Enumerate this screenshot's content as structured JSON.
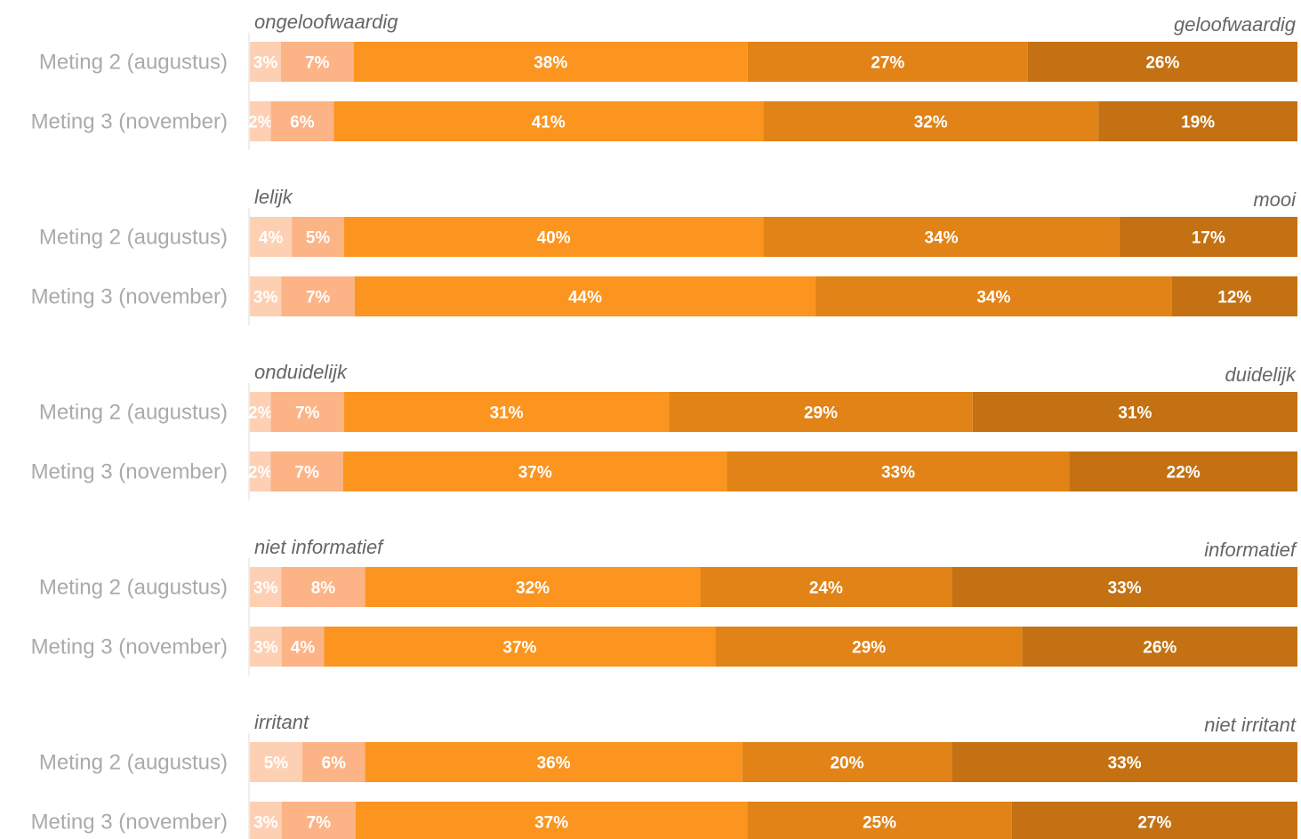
{
  "chart_data": {
    "type": "bar",
    "orientation": "horizontal-stacked-100",
    "colors": [
      "#fdd0b4",
      "#fcb386",
      "#fb951f",
      "#e18317",
      "#c37112"
    ],
    "groups": [
      {
        "left_label": "ongeloofwaardig",
        "right_label": "geloofwaardig",
        "rows": [
          {
            "label": "Meting 2 (augustus)",
            "values": [
              3,
              7,
              38,
              27,
              26
            ],
            "value_labels": [
              "3%",
              "7%",
              "38%",
              "27%",
              "26%"
            ]
          },
          {
            "label": "Meting 3 (november)",
            "values": [
              2,
              6,
              41,
              32,
              19
            ],
            "value_labels": [
              "2%",
              "6%",
              "41%",
              "32%",
              "19%"
            ]
          }
        ]
      },
      {
        "left_label": "lelijk",
        "right_label": "mooi",
        "rows": [
          {
            "label": "Meting 2 (augustus)",
            "values": [
              4,
              5,
              40,
              34,
              17
            ],
            "value_labels": [
              "4%",
              "5%",
              "40%",
              "34%",
              "17%"
            ]
          },
          {
            "label": "Meting 3 (november)",
            "values": [
              3,
              7,
              44,
              34,
              12
            ],
            "value_labels": [
              "3%",
              "7%",
              "44%",
              "34%",
              "12%"
            ]
          }
        ]
      },
      {
        "left_label": "onduidelijk",
        "right_label": "duidelijk",
        "rows": [
          {
            "label": "Meting 2 (augustus)",
            "values": [
              2,
              7,
              31,
              29,
              31
            ],
            "value_labels": [
              "2%",
              "7%",
              "31%",
              "29%",
              "31%"
            ]
          },
          {
            "label": "Meting 3 (november)",
            "values": [
              2,
              7,
              37,
              33,
              22
            ],
            "value_labels": [
              "2%",
              "7%",
              "37%",
              "33%",
              "22%"
            ]
          }
        ]
      },
      {
        "left_label": "niet informatief",
        "right_label": "informatief",
        "rows": [
          {
            "label": "Meting 2 (augustus)",
            "values": [
              3,
              8,
              32,
              24,
              33
            ],
            "value_labels": [
              "3%",
              "8%",
              "32%",
              "24%",
              "33%"
            ]
          },
          {
            "label": "Meting 3 (november)",
            "values": [
              3,
              4,
              37,
              29,
              26
            ],
            "value_labels": [
              "3%",
              "4%",
              "37%",
              "29%",
              "26%"
            ]
          }
        ]
      },
      {
        "left_label": "irritant",
        "right_label": "niet irritant",
        "rows": [
          {
            "label": "Meting 2 (augustus)",
            "values": [
              5,
              6,
              36,
              20,
              33
            ],
            "value_labels": [
              "5%",
              "6%",
              "36%",
              "20%",
              "33%"
            ]
          },
          {
            "label": "Meting 3 (november)",
            "values": [
              3,
              7,
              37,
              25,
              27
            ],
            "value_labels": [
              "3%",
              "7%",
              "37%",
              "25%",
              "27%"
            ]
          }
        ]
      }
    ]
  }
}
